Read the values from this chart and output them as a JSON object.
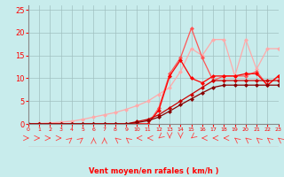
{
  "background_color": "#c8ecec",
  "grid_color": "#a0c0c0",
  "axis_color": "#888888",
  "text_color": "#ff0000",
  "xlabel": "Vent moyen/en rafales ( km/h )",
  "xlim": [
    0,
    23
  ],
  "ylim": [
    0,
    26
  ],
  "yticks": [
    0,
    5,
    10,
    15,
    20,
    25
  ],
  "xtick_labels": [
    "0",
    "1",
    "2",
    "3",
    "4",
    "5",
    "6",
    "7",
    "8",
    "9",
    "10",
    "11",
    "12",
    "13",
    "14",
    "15",
    "16",
    "17",
    "18",
    "19",
    "20",
    "21",
    "22",
    "23"
  ],
  "lines": [
    {
      "x": [
        0,
        1,
        2,
        3,
        4,
        5,
        6,
        7,
        8,
        9,
        10,
        11,
        12,
        13,
        14,
        15,
        16,
        17,
        18,
        19,
        20,
        21,
        22,
        23
      ],
      "y": [
        0,
        0.1,
        0.2,
        0.4,
        0.6,
        1.0,
        1.5,
        2.0,
        2.5,
        3.2,
        4.0,
        5.0,
        6.5,
        8.0,
        11.5,
        16.5,
        15.0,
        18.5,
        18.5,
        10.5,
        18.5,
        12.0,
        16.5,
        16.5
      ],
      "color": "#ffaaaa",
      "lw": 0.9
    },
    {
      "x": [
        0,
        1,
        2,
        3,
        4,
        5,
        6,
        7,
        8,
        9,
        10,
        11,
        12,
        13,
        14,
        15,
        16,
        17,
        18,
        19,
        20,
        21,
        22,
        23
      ],
      "y": [
        0,
        0,
        0,
        0,
        0,
        0,
        0,
        0,
        0,
        0,
        0,
        0,
        3.5,
        11.0,
        14.5,
        21.0,
        14.5,
        9.5,
        10.5,
        10.5,
        10.5,
        11.5,
        8.5,
        10.5
      ],
      "color": "#ff5555",
      "lw": 0.9
    },
    {
      "x": [
        0,
        1,
        2,
        3,
        4,
        5,
        6,
        7,
        8,
        9,
        10,
        11,
        12,
        13,
        14,
        15,
        16,
        17,
        18,
        19,
        20,
        21,
        22,
        23
      ],
      "y": [
        0,
        0,
        0,
        0,
        0,
        0,
        0,
        0,
        0,
        0,
        0,
        0,
        3.0,
        10.5,
        14.0,
        10.0,
        9.0,
        10.5,
        10.5,
        10.5,
        11.0,
        11.0,
        8.5,
        10.5
      ],
      "color": "#ff0000",
      "lw": 0.9
    },
    {
      "x": [
        0,
        1,
        2,
        3,
        4,
        5,
        6,
        7,
        8,
        9,
        10,
        11,
        12,
        13,
        14,
        15,
        16,
        17,
        18,
        19,
        20,
        21,
        22,
        23
      ],
      "y": [
        0,
        0,
        0,
        0,
        0,
        0,
        0,
        0,
        0,
        0,
        0.5,
        1.0,
        2.0,
        3.5,
        5.0,
        6.5,
        8.0,
        9.5,
        9.5,
        9.5,
        9.5,
        9.5,
        9.5,
        9.5
      ],
      "color": "#cc0000",
      "lw": 0.9
    },
    {
      "x": [
        0,
        1,
        2,
        3,
        4,
        5,
        6,
        7,
        8,
        9,
        10,
        11,
        12,
        13,
        14,
        15,
        16,
        17,
        18,
        19,
        20,
        21,
        22,
        23
      ],
      "y": [
        0,
        0,
        0,
        0,
        0,
        0,
        0,
        0,
        0,
        0,
        0.3,
        0.7,
        1.5,
        2.8,
        4.2,
        5.5,
        6.8,
        8.0,
        8.5,
        8.5,
        8.5,
        8.5,
        8.5,
        8.5
      ],
      "color": "#880000",
      "lw": 0.9
    }
  ],
  "arrow_angles": [
    0,
    0,
    0,
    0,
    45,
    45,
    90,
    90,
    135,
    135,
    180,
    180,
    225,
    270,
    270,
    225,
    180,
    180,
    180,
    135,
    135,
    135,
    135,
    135
  ],
  "arrow_color": "#ff4444",
  "marker": "D",
  "marker_size": 2.5
}
